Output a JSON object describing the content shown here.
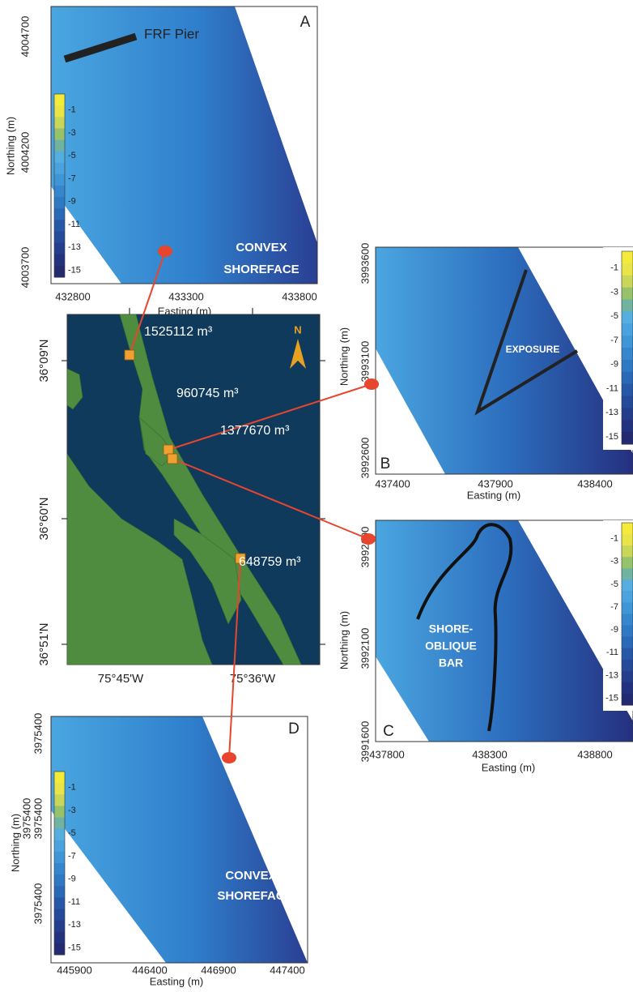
{
  "panels": [
    {
      "letter": "A",
      "x_ticks": [
        "432800",
        "433300",
        "433800"
      ],
      "y_ticks": [
        "4004700",
        "4004200",
        "4003700"
      ],
      "x_title": "Easting (m)",
      "y_title": "Northing (m)",
      "legend": [
        "-1",
        "-3",
        "-5",
        "-7",
        "-9",
        "-11",
        "-13",
        "-15"
      ],
      "notes": [
        "CONVEX",
        "SHOREFACE"
      ],
      "feature": "FRF Pier"
    },
    {
      "letter": "B",
      "x_ticks": [
        "437400",
        "437900",
        "438400"
      ],
      "y_ticks": [
        "3993600",
        "3993100",
        "3992600"
      ],
      "x_title": "Easting (m)",
      "y_title": "Northing (m)",
      "legend": [
        "-1",
        "-3",
        "-5",
        "-7",
        "-9",
        "-11",
        "-13",
        "-15"
      ],
      "notes": [
        "EXPOSURE"
      ]
    },
    {
      "letter": "C",
      "x_ticks": [
        "437800",
        "438300",
        "438800"
      ],
      "y_ticks": [
        "3992600",
        "3992100",
        "3991600"
      ],
      "x_title": "Easting (m)",
      "y_title": "Northing (m)",
      "legend": [
        "-1",
        "-3",
        "-5",
        "-7",
        "-9",
        "-11",
        "-13",
        "-15"
      ],
      "notes": [
        "SHORE-",
        "OBLIQUE",
        "BAR"
      ]
    },
    {
      "letter": "D",
      "x_ticks": [
        "445900",
        "446400",
        "446900",
        "447400"
      ],
      "y_ticks": [
        "3975400",
        "3975400",
        "3975400",
        "3975400"
      ],
      "x_title": "Easting (m)",
      "y_title": "Northing (m)",
      "legend": [
        "-1",
        "-3",
        "-5",
        "-7",
        "-9",
        "-11",
        "-13",
        "-15"
      ],
      "notes": [
        "CONVEX",
        "SHOREFACE"
      ]
    }
  ],
  "overview": {
    "lat_labels": [
      "36°09'N",
      "36°60'N",
      "36°51'N"
    ],
    "lon_labels": [
      "75°45'W",
      "75°36'W"
    ],
    "north": "N",
    "sites": [
      "1525112 m³",
      "960745 m³",
      "1377670 m³",
      "648759 m³"
    ]
  }
}
